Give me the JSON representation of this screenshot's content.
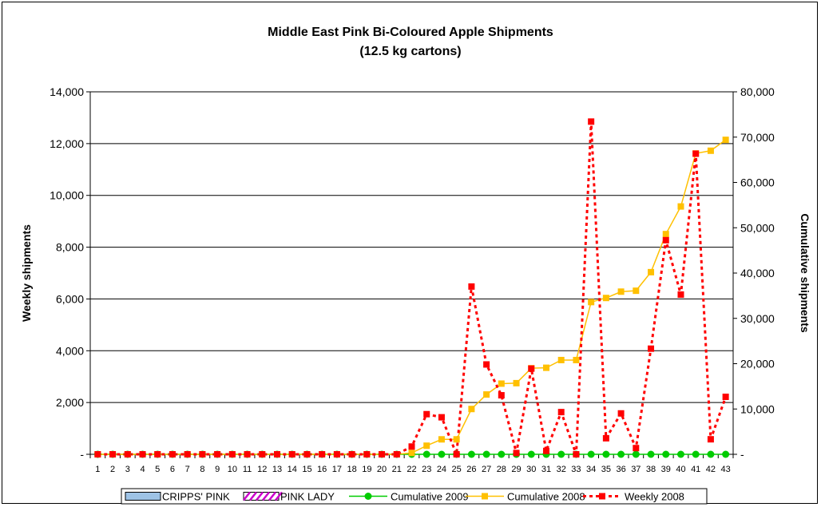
{
  "chart_data": {
    "type": "line",
    "title": "Middle East Pink Bi-Coloured Apple Shipments",
    "subtitle": "(12.5 kg cartons)",
    "ylabel": "Weekly shipments",
    "y2label": "Cumulative shipments",
    "xlabel": "",
    "ylim": [
      0,
      14000
    ],
    "y2lim": [
      0,
      80000
    ],
    "yticks": [
      "-",
      "2,000",
      "4,000",
      "6,000",
      "8,000",
      "10,000",
      "12,000",
      "14,000"
    ],
    "y2ticks": [
      "-",
      "10,000",
      "20,000",
      "30,000",
      "40,000",
      "50,000",
      "60,000",
      "70,000",
      "80,000"
    ],
    "grid": true,
    "legend_position": "bottom",
    "categories": [
      1,
      2,
      3,
      4,
      5,
      6,
      7,
      8,
      9,
      10,
      11,
      12,
      13,
      14,
      15,
      16,
      17,
      18,
      19,
      20,
      21,
      22,
      23,
      24,
      25,
      26,
      27,
      28,
      29,
      30,
      31,
      32,
      33,
      34,
      35,
      36,
      37,
      38,
      39,
      40,
      41,
      42,
      43
    ],
    "series": [
      {
        "name": "CRIPPS' PINK",
        "kind": "bar",
        "axis": "left",
        "color": "#9ec3e6",
        "values": [
          0,
          0,
          0,
          0,
          0,
          0,
          0,
          0,
          0,
          0,
          0,
          0,
          0,
          0,
          0,
          0,
          0,
          0,
          0,
          0,
          0,
          0,
          0,
          0,
          0,
          0,
          0,
          0,
          0,
          0,
          0,
          0,
          0,
          0,
          0,
          0,
          0,
          0,
          0,
          0,
          0,
          0,
          0
        ]
      },
      {
        "name": "PINK LADY",
        "kind": "bar",
        "axis": "left",
        "color": "#cc00cc",
        "values": [
          0,
          0,
          0,
          0,
          0,
          0,
          0,
          0,
          0,
          0,
          0,
          0,
          0,
          0,
          0,
          0,
          0,
          0,
          0,
          0,
          0,
          0,
          0,
          0,
          0,
          0,
          0,
          0,
          0,
          0,
          0,
          0,
          0,
          0,
          0,
          0,
          0,
          0,
          0,
          0,
          0,
          0,
          0
        ]
      },
      {
        "name": "Cumulative 2009",
        "kind": "line",
        "axis": "right",
        "color": "#00cc00",
        "values": [
          0,
          0,
          0,
          0,
          0,
          0,
          0,
          0,
          0,
          0,
          0,
          0,
          0,
          0,
          0,
          0,
          0,
          0,
          0,
          0,
          0,
          0,
          0,
          0,
          0,
          0,
          0,
          0,
          0,
          0,
          0,
          0,
          0,
          0,
          0,
          0,
          0,
          0,
          0,
          0,
          0,
          0,
          0
        ]
      },
      {
        "name": "Cumulative 2008",
        "kind": "line",
        "axis": "right",
        "color": "#ffc000",
        "values": [
          0,
          0,
          0,
          0,
          0,
          0,
          0,
          0,
          0,
          0,
          0,
          0,
          0,
          0,
          0,
          0,
          0,
          0,
          0,
          0,
          0,
          300,
          1900,
          3300,
          3300,
          10000,
          13200,
          15600,
          15700,
          19000,
          19100,
          20800,
          20800,
          33600,
          34500,
          35900,
          36100,
          40200,
          48600,
          54700,
          66400,
          67000,
          69400
        ]
      },
      {
        "name": "Weekly 2008",
        "kind": "line",
        "axis": "left",
        "color": "#ff0000",
        "values": [
          0,
          0,
          0,
          0,
          0,
          0,
          0,
          0,
          0,
          0,
          0,
          0,
          0,
          0,
          0,
          0,
          0,
          0,
          0,
          0,
          0,
          300,
          1550,
          1430,
          0,
          6480,
          3470,
          2280,
          50,
          3310,
          130,
          1630,
          0,
          12850,
          620,
          1580,
          240,
          4080,
          8270,
          6170,
          11610,
          580,
          2220
        ]
      }
    ]
  }
}
